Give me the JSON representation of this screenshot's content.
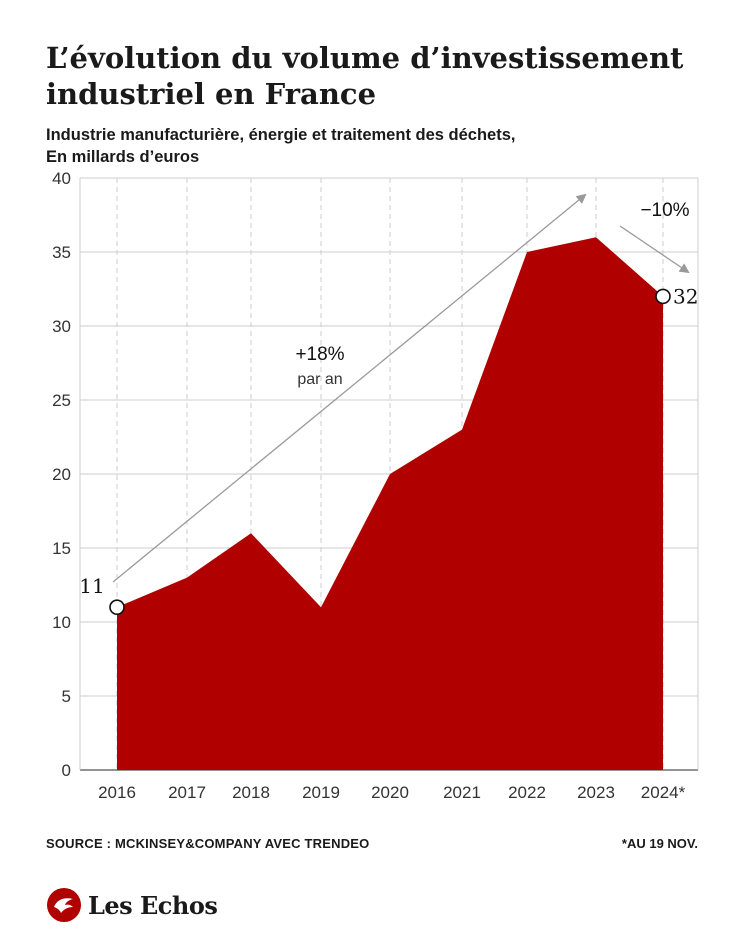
{
  "title": "L’évolution du volume d’investissement industriel en France",
  "subtitle_line1": "Industrie manufacturière, énergie et traitement des déchets,",
  "subtitle_line2": "En millards d’euros",
  "source": "SOURCE : MCKINSEY&COMPANY AVEC TRENDEO",
  "footnote": "*AU 19 NOV.",
  "brand": "Les Echos",
  "colors": {
    "area": "#b00000",
    "grid": "#cccccc",
    "arrow": "#9a9a9a",
    "text": "#1a1a1a"
  },
  "chart_data": {
    "type": "area",
    "x": [
      "2016",
      "2017",
      "2018",
      "2019",
      "2020",
      "2021",
      "2022",
      "2023",
      "2024*"
    ],
    "values": [
      11,
      13,
      16,
      11,
      20,
      23,
      35,
      36,
      32
    ],
    "ylim": [
      0,
      40
    ],
    "yticks": [
      0,
      5,
      10,
      15,
      20,
      25,
      30,
      35,
      40
    ],
    "grid": true,
    "annotations": {
      "start_label": "11",
      "end_label": "32",
      "growth_pct": "+18%",
      "growth_sub": "par an",
      "decline_pct": "−10%"
    }
  }
}
